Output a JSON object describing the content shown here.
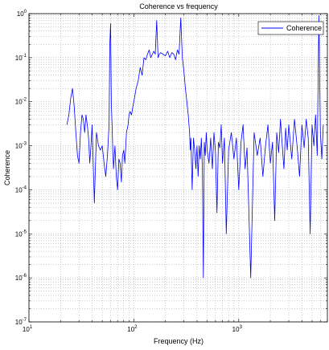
{
  "chart_data": {
    "type": "line",
    "title": "Coherence vs frequency",
    "xlabel": "Frequency (Hz)",
    "ylabel": "Coherence",
    "xscale": "log",
    "yscale": "log",
    "xlim": [
      10,
      7000
    ],
    "ylim": [
      1e-07,
      1
    ],
    "grid": true,
    "legend_position": "top-right",
    "x_ticks": [
      {
        "value": 10,
        "base": "10",
        "exp": "1"
      },
      {
        "value": 100,
        "base": "10",
        "exp": "2"
      },
      {
        "value": 1000,
        "base": "10",
        "exp": "3"
      }
    ],
    "y_ticks": [
      {
        "value": 1,
        "base": "10",
        "exp": "0"
      },
      {
        "value": 0.1,
        "base": "10",
        "exp": "-1"
      },
      {
        "value": 0.01,
        "base": "10",
        "exp": "-2"
      },
      {
        "value": 0.001,
        "base": "10",
        "exp": "-3"
      },
      {
        "value": 0.0001,
        "base": "10",
        "exp": "-4"
      },
      {
        "value": 1e-05,
        "base": "10",
        "exp": "-5"
      },
      {
        "value": 1e-06,
        "base": "10",
        "exp": "-6"
      },
      {
        "value": 1e-07,
        "base": "10",
        "exp": "-7"
      }
    ],
    "series": [
      {
        "name": "Coherence",
        "color": "#0000ff",
        "x": [
          23,
          24,
          25,
          26,
          27,
          28,
          29,
          30,
          31,
          32,
          33,
          34,
          35,
          36,
          37,
          38,
          39,
          40,
          42,
          44,
          46,
          48,
          50,
          52,
          54,
          56,
          58,
          59,
          60,
          61,
          62,
          63,
          64,
          66,
          68,
          70,
          72,
          74,
          76,
          78,
          80,
          82,
          85,
          88,
          90,
          92,
          95,
          98,
          100,
          105,
          110,
          115,
          120,
          125,
          130,
          135,
          140,
          145,
          150,
          155,
          160,
          165,
          170,
          175,
          180,
          190,
          200,
          210,
          220,
          230,
          240,
          250,
          260,
          270,
          280,
          290,
          300,
          310,
          320,
          330,
          340,
          345,
          350,
          360,
          370,
          380,
          390,
          400,
          410,
          420,
          430,
          440,
          450,
          460,
          470,
          480,
          490,
          500,
          520,
          540,
          560,
          580,
          600,
          620,
          640,
          660,
          680,
          700,
          730,
          760,
          800,
          850,
          900,
          950,
          1000,
          1050,
          1100,
          1150,
          1200,
          1300,
          1400,
          1500,
          1600,
          1700,
          1800,
          1900,
          2000,
          2100,
          2200,
          2300,
          2400,
          2500,
          2600,
          2700,
          2800,
          2900,
          3000,
          3200,
          3400,
          3600,
          3800,
          4000,
          4200,
          4400,
          4600,
          4800,
          5000,
          5200,
          5400,
          5600,
          5800,
          6000,
          6200,
          6400
        ],
        "y": [
          0.003,
          0.005,
          0.012,
          0.02,
          0.008,
          0.002,
          0.0006,
          0.0004,
          0.002,
          0.005,
          0.004,
          0.002,
          0.005,
          0.003,
          0.0015,
          0.0004,
          0.001,
          0.003,
          5e-05,
          0.002,
          0.001,
          0.0008,
          0.001,
          0.0004,
          0.0002,
          0.0006,
          0.003,
          0.2,
          0.6,
          0.01,
          0.003,
          0.0008,
          0.0003,
          0.001,
          0.0002,
          0.0001,
          0.0005,
          0.0004,
          0.00015,
          0.0006,
          0.0008,
          0.0004,
          0.002,
          0.003,
          0.005,
          0.006,
          0.005,
          0.008,
          0.01,
          0.02,
          0.03,
          0.06,
          0.04,
          0.1,
          0.09,
          0.12,
          0.15,
          0.1,
          0.12,
          0.14,
          0.12,
          0.7,
          0.1,
          0.12,
          0.13,
          0.12,
          0.11,
          0.14,
          0.1,
          0.13,
          0.12,
          0.09,
          0.15,
          0.12,
          0.8,
          0.1,
          0.05,
          0.02,
          0.01,
          0.005,
          0.002,
          0.0008,
          0.0015,
          0.0001,
          0.0015,
          0.0008,
          0.0003,
          0.001,
          0.0002,
          0.001,
          0.0005,
          0.0015,
          0.0003,
          1e-06,
          0.0012,
          0.0006,
          0.002,
          0.0008,
          0.0004,
          0.0015,
          0.0003,
          0.002,
          0.0007,
          3e-05,
          0.0012,
          0.0009,
          0.003,
          0.0004,
          0.0015,
          1e-05,
          0.0008,
          0.002,
          0.0005,
          0.0015,
          0.0001,
          0.0012,
          0.003,
          0.0003,
          0.0009,
          1e-06,
          0.002,
          0.0006,
          0.0015,
          0.0002,
          0.001,
          0.003,
          0.0004,
          0.0012,
          2e-05,
          0.002,
          0.0007,
          0.004,
          0.001,
          0.0003,
          0.0025,
          0.0008,
          0.003,
          0.0005,
          0.004,
          0.001,
          0.0002,
          0.003,
          0.0009,
          0.004,
          0.0015,
          1e-05,
          0.003,
          0.001,
          0.005,
          0.0006,
          0.9,
          0.002,
          0.0005,
          0.003
        ]
      }
    ]
  }
}
